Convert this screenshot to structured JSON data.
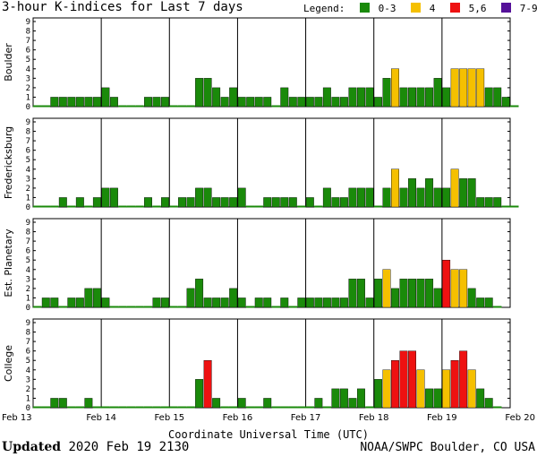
{
  "title": "3-hour K-indices for Last 7 days",
  "legend": {
    "label": "Legend:",
    "items": [
      {
        "label": "0-3",
        "color": "#1a8a0a"
      },
      {
        "label": "4",
        "color": "#f5c000"
      },
      {
        "label": "5,6",
        "color": "#ee1111"
      },
      {
        "label": "7-9",
        "color": "#551199"
      }
    ]
  },
  "footer": {
    "updated_label": "Updated",
    "updated_value": "2020 Feb 19 2130",
    "source": "NOAA/SWPC Boulder, CO USA"
  },
  "chart_data": {
    "type": "bar",
    "xlabel": "Coordinate Universal Time (UTC)",
    "x_ticks": [
      "Feb 13",
      "Feb 14",
      "Feb 15",
      "Feb 16",
      "Feb 17",
      "Feb 18",
      "Feb 19",
      "Feb 20"
    ],
    "ylim": [
      0,
      9
    ],
    "y_ticks": [
      "0",
      "1",
      "2",
      "3",
      "4",
      "5",
      "6",
      "7",
      "8",
      "9"
    ],
    "bins_per_day": 8,
    "panels": [
      {
        "name": "Boulder",
        "values": [
          0,
          0,
          1,
          1,
          1,
          1,
          1,
          1,
          2,
          1,
          0,
          0,
          0,
          1,
          1,
          1,
          0,
          0,
          0,
          3,
          3,
          2,
          1,
          2,
          1,
          1,
          1,
          1,
          0,
          2,
          1,
          1,
          1,
          1,
          2,
          1,
          1,
          2,
          2,
          2,
          1,
          3,
          4,
          2,
          2,
          2,
          2,
          3,
          2,
          4,
          4,
          4,
          4,
          2,
          2,
          1,
          0
        ]
      },
      {
        "name": "Fredericksburg",
        "values": [
          0,
          0,
          0,
          1,
          0,
          1,
          0,
          1,
          2,
          2,
          0,
          0,
          0,
          1,
          0,
          1,
          0,
          1,
          1,
          2,
          2,
          1,
          1,
          1,
          2,
          0,
          0,
          1,
          1,
          1,
          1,
          0,
          1,
          0,
          2,
          1,
          1,
          2,
          2,
          2,
          0,
          2,
          4,
          2,
          3,
          2,
          3,
          2,
          2,
          4,
          3,
          3,
          1,
          1,
          1,
          0,
          0
        ]
      },
      {
        "name": "Est. Planetary",
        "values": [
          0,
          1,
          1,
          0,
          1,
          1,
          2,
          2,
          1,
          0,
          0,
          0,
          0,
          0,
          1,
          1,
          0,
          0,
          2,
          3,
          1,
          1,
          1,
          2,
          1,
          0,
          1,
          1,
          0,
          1,
          0,
          1,
          1,
          1,
          1,
          1,
          1,
          3,
          3,
          1,
          3,
          4,
          2,
          3,
          3,
          3,
          3,
          2,
          5,
          4,
          4,
          2,
          1,
          1,
          0
        ]
      },
      {
        "name": "College",
        "values": [
          0,
          0,
          1,
          1,
          0,
          0,
          1,
          0,
          0,
          0,
          0,
          0,
          0,
          0,
          0,
          0,
          0,
          0,
          0,
          3,
          5,
          1,
          0,
          0,
          1,
          0,
          0,
          1,
          0,
          0,
          0,
          0,
          0,
          1,
          0,
          2,
          2,
          1,
          2,
          0,
          3,
          4,
          5,
          6,
          6,
          4,
          2,
          2,
          4,
          5,
          6,
          4,
          2,
          1,
          0
        ]
      }
    ]
  }
}
